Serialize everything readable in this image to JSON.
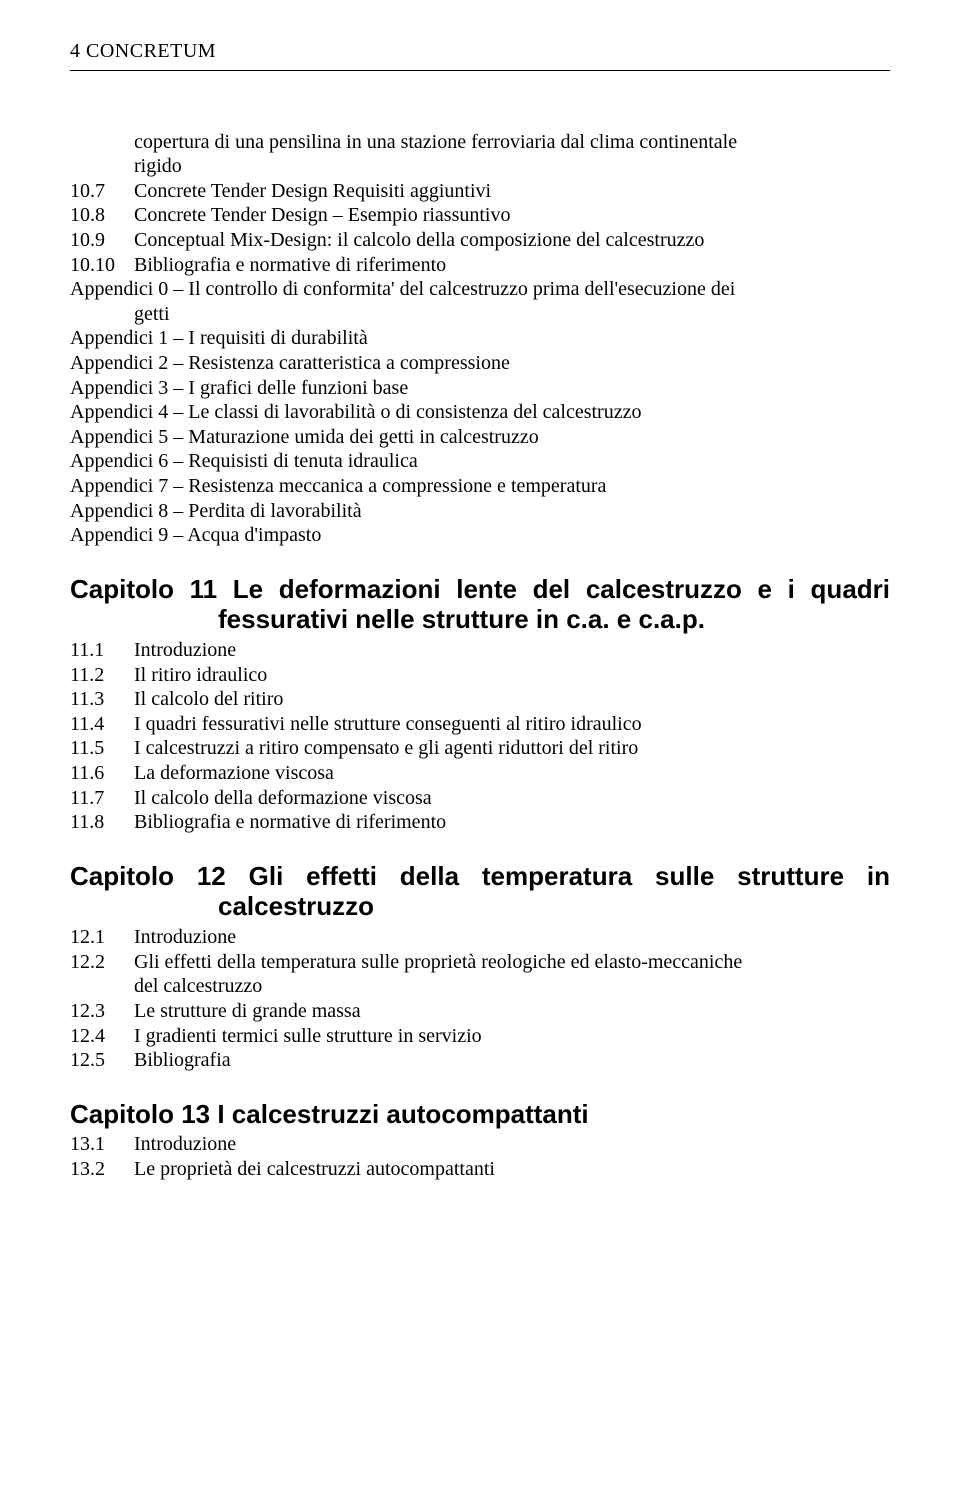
{
  "header": "4  CONCRETUM",
  "section10": {
    "opening": {
      "line1": "copertura di una pensilina in una stazione ferroviaria dal clima continentale",
      "line2": "rigido"
    },
    "items": [
      {
        "num": "10.7",
        "text": "Concrete Tender Design Requisiti aggiuntivi"
      },
      {
        "num": "10.8",
        "text": "Concrete Tender Design – Esempio riassuntivo"
      },
      {
        "num": "10.9",
        "text": "Conceptual Mix-Design: il calcolo della composizione del calcestruzzo"
      },
      {
        "num": "10.10",
        "text": "Bibliografia e normative di riferimento"
      }
    ],
    "appendices": [
      "Appendici 0 – Il controllo di conformita' del calcestruzzo prima dell'esecuzione dei",
      "Appendici 1 – I requisiti di durabilità",
      "Appendici 2 – Resistenza caratteristica a compressione",
      "Appendici 3 – I grafici delle funzioni base",
      "Appendici 4 – Le classi di lavorabilità o di consistenza del calcestruzzo",
      "Appendici 5 – Maturazione umida dei getti in calcestruzzo",
      "Appendici 6 – Requisisti di tenuta idraulica",
      "Appendici 7 – Resistenza meccanica a compressione e temperatura",
      "Appendici 8 – Perdita di lavorabilità",
      "Appendici 9 – Acqua d'impasto"
    ],
    "appendix0_cont": "getti"
  },
  "chapter11": {
    "title_l1": "Capitolo 11 Le deformazioni lente del calcestruzzo e i quadri",
    "title_l2": "fessurativi nelle strutture in c.a. e c.a.p.",
    "items": [
      {
        "num": "11.1",
        "text": "Introduzione"
      },
      {
        "num": "11.2",
        "text": "Il ritiro idraulico"
      },
      {
        "num": "11.3",
        "text": "Il calcolo del ritiro"
      },
      {
        "num": "11.4",
        "text": "I quadri fessurativi nelle strutture conseguenti al ritiro idraulico"
      },
      {
        "num": "11.5",
        "text": "I calcestruzzi a ritiro compensato e gli agenti riduttori del ritiro"
      },
      {
        "num": "11.6",
        "text": "La deformazione viscosa"
      },
      {
        "num": "11.7",
        "text": "Il calcolo della deformazione viscosa"
      },
      {
        "num": "11.8",
        "text": "Bibliografia e normative di riferimento"
      }
    ]
  },
  "chapter12": {
    "title_l1": "Capitolo 12 Gli effetti della temperatura sulle strutture in",
    "title_l2": "calcestruzzo",
    "items": [
      {
        "num": "12.1",
        "text": "Introduzione"
      },
      {
        "num": "12.2",
        "line1": " Gli effetti della temperatura sulle proprietà reologiche ed elasto-meccaniche",
        "line2": "del calcestruzzo"
      },
      {
        "num": "12.3",
        "text": "Le strutture di grande massa"
      },
      {
        "num": "12.4",
        "text": "I gradienti termici sulle strutture in servizio"
      },
      {
        "num": "12.5",
        "text": "Bibliografia"
      }
    ]
  },
  "chapter13": {
    "title": "Capitolo 13 I calcestruzzi autocompattanti",
    "items": [
      {
        "num": "13.1",
        "text": "Introduzione"
      },
      {
        "num": "13.2",
        "text": "Le proprietà dei calcestruzzi autocompattanti"
      }
    ]
  }
}
